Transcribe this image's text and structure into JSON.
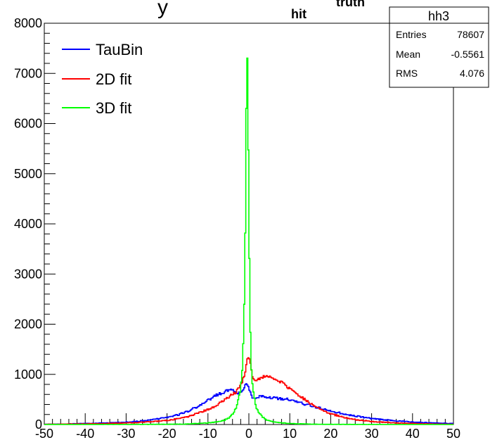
{
  "chart_data": {
    "type": "line",
    "title_visible": "y",
    "title_sub_hit": "hit",
    "title_sub_truth": "truth",
    "xlim": [
      -50,
      50
    ],
    "ylim": [
      0,
      8000
    ],
    "x_ticks": [
      "-50",
      "-40",
      "-30",
      "-20",
      "-10",
      "0",
      "10",
      "20",
      "30",
      "40",
      "50"
    ],
    "y_ticks": [
      "0",
      "1000",
      "2000",
      "3000",
      "4000",
      "5000",
      "6000",
      "7000",
      "8000"
    ],
    "legend_position": "top-left",
    "series": [
      {
        "name": "TauBin",
        "color": "#0000ff",
        "x": [
          -50,
          -45,
          -40,
          -35,
          -30,
          -25,
          -20,
          -17,
          -15,
          -12,
          -10,
          -8,
          -6,
          -5,
          -4,
          -3,
          -2,
          -1.5,
          -1,
          -0.5,
          0,
          0.5,
          1,
          1.5,
          2,
          3,
          5,
          7,
          10,
          13,
          15,
          20,
          25,
          30,
          35,
          40,
          45,
          50
        ],
        "y": [
          5,
          10,
          20,
          30,
          45,
          80,
          140,
          200,
          260,
          380,
          480,
          580,
          650,
          680,
          690,
          640,
          620,
          650,
          750,
          840,
          720,
          600,
          530,
          540,
          550,
          560,
          540,
          520,
          500,
          420,
          380,
          270,
          180,
          120,
          80,
          50,
          30,
          20
        ]
      },
      {
        "name": "2D fit",
        "color": "#ff0000",
        "x": [
          -50,
          -45,
          -40,
          -35,
          -30,
          -25,
          -20,
          -15,
          -10,
          -8,
          -6,
          -4,
          -3,
          -2,
          -1,
          -0.5,
          0,
          0.5,
          1,
          1.5,
          2,
          3,
          4,
          6,
          8,
          10,
          13,
          15,
          20,
          25,
          30,
          35,
          40,
          45,
          50
        ],
        "y": [
          5,
          8,
          12,
          20,
          30,
          50,
          80,
          150,
          300,
          380,
          480,
          600,
          660,
          780,
          1000,
          1280,
          1350,
          1180,
          900,
          860,
          880,
          930,
          960,
          920,
          840,
          720,
          540,
          420,
          210,
          110,
          60,
          35,
          20,
          10,
          5
        ]
      },
      {
        "name": "3D fit",
        "color": "#00ff00",
        "x": [
          -50,
          -30,
          -20,
          -15,
          -10,
          -7,
          -5,
          -4,
          -3,
          -2,
          -1.5,
          -1,
          -0.75,
          -0.5,
          -0.25,
          0,
          0.25,
          0.5,
          0.75,
          1,
          1.5,
          2,
          3,
          4,
          5,
          7,
          10,
          15,
          20,
          30,
          50
        ],
        "y": [
          0,
          2,
          5,
          10,
          30,
          60,
          120,
          200,
          350,
          700,
          1200,
          2800,
          4800,
          7780,
          6800,
          4200,
          2400,
          1300,
          900,
          700,
          450,
          300,
          180,
          110,
          70,
          40,
          20,
          8,
          4,
          1,
          0
        ]
      }
    ],
    "stats_box": {
      "title": "hh3",
      "rows": [
        {
          "label": "Entries",
          "value": "78607"
        },
        {
          "label": "Mean",
          "value": "-0.5561"
        },
        {
          "label": "RMS",
          "value": "4.076"
        }
      ]
    }
  }
}
